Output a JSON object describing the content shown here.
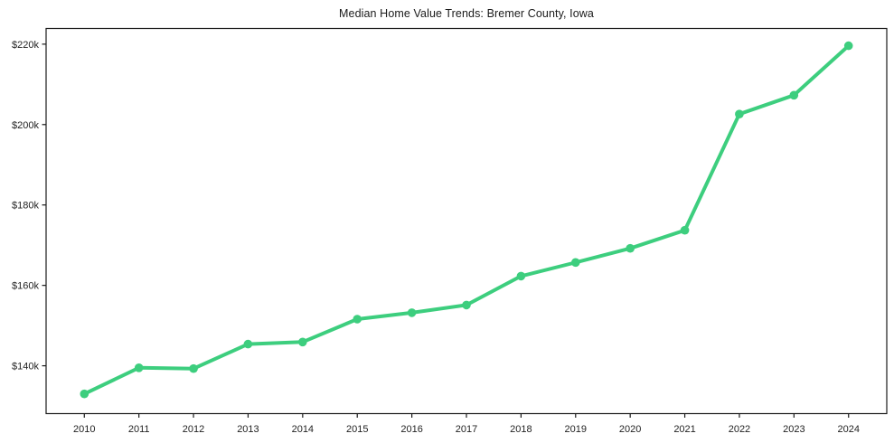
{
  "chart_data": {
    "type": "line",
    "title": "Median Home Value Trends: Bremer County, Iowa",
    "xlabel": "",
    "ylabel": "",
    "x": [
      2010,
      2011,
      2012,
      2013,
      2014,
      2015,
      2016,
      2017,
      2018,
      2019,
      2020,
      2021,
      2022,
      2023,
      2024
    ],
    "values": [
      133000,
      139500,
      139300,
      145400,
      145900,
      151600,
      153200,
      155100,
      162300,
      165700,
      169200,
      173700,
      202600,
      207300,
      219600
    ],
    "x_tick_labels": [
      "2010",
      "2011",
      "2012",
      "2013",
      "2014",
      "2015",
      "2016",
      "2017",
      "2018",
      "2019",
      "2020",
      "2021",
      "2022",
      "2023",
      "2024"
    ],
    "y_ticks": [
      {
        "label": "$140k",
        "value": 140000
      },
      {
        "label": "$160k",
        "value": 160000
      },
      {
        "label": "$180k",
        "value": 180000
      },
      {
        "label": "$200k",
        "value": 200000
      },
      {
        "label": "$220k",
        "value": 220000
      }
    ],
    "xlim": [
      2009.3,
      2024.7
    ],
    "ylim": [
      128100,
      223900
    ],
    "grid": false,
    "legend_position": "none",
    "marker": "circle",
    "line_color": "#3dce7e",
    "axis_color": "#1a1a1a",
    "text_color": "#222222",
    "background": "#ffffff"
  }
}
